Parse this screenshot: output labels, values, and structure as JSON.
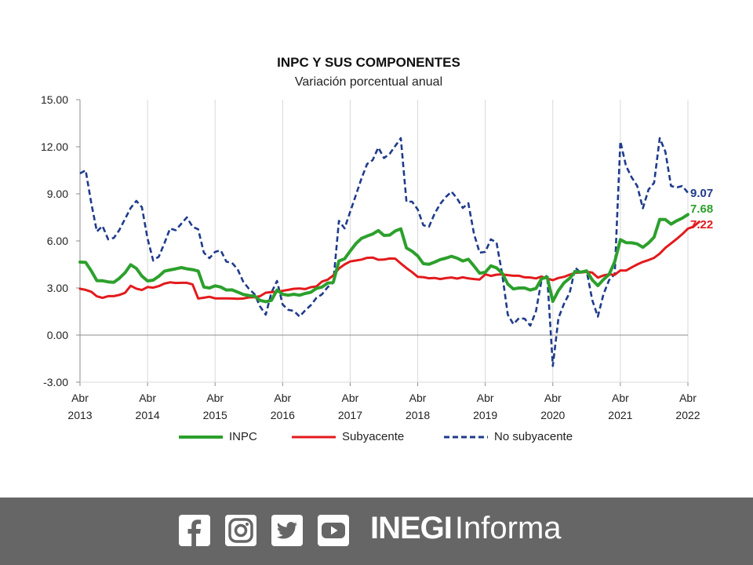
{
  "chart_data": {
    "type": "line",
    "title": "INPC Y SUS COMPONENTES",
    "subtitle": "Variación porcentual anual",
    "ylim": [
      -3,
      15
    ],
    "y_ticks": [
      "15.00",
      "12.00",
      "9.00",
      "6.00",
      "3.00",
      "0.00",
      "-3.00"
    ],
    "x_ticks": [
      {
        "month": "Abr",
        "year": "2013"
      },
      {
        "month": "Abr",
        "year": "2014"
      },
      {
        "month": "Abr",
        "year": "2015"
      },
      {
        "month": "Abr",
        "year": "2016"
      },
      {
        "month": "Abr",
        "year": "2017"
      },
      {
        "month": "Abr",
        "year": "2018"
      },
      {
        "month": "Abr",
        "year": "2019"
      },
      {
        "month": "Abr",
        "year": "2020"
      },
      {
        "month": "Abr",
        "year": "2021"
      },
      {
        "month": "Abr",
        "year": "2022"
      }
    ],
    "x_start": "2013-04",
    "x_end": "2022-04",
    "grid": "vertical",
    "legend_position": "bottom",
    "series": [
      {
        "name": "INPC",
        "color": "#2ca02c",
        "style": "solid",
        "last_label": "7.68",
        "values": [
          4.65,
          4.63,
          4.09,
          3.47,
          3.46,
          3.39,
          3.36,
          3.62,
          3.97,
          4.48,
          4.25,
          3.76,
          3.45,
          3.5,
          3.75,
          4.07,
          4.15,
          4.22,
          4.3,
          4.22,
          4.17,
          4.08,
          3.06,
          3.0,
          3.14,
          3.06,
          2.87,
          2.88,
          2.74,
          2.59,
          2.52,
          2.48,
          2.21,
          2.13,
          2.21,
          2.87,
          2.6,
          2.54,
          2.6,
          2.54,
          2.65,
          2.73,
          2.97,
          3.06,
          3.31,
          3.36,
          4.72,
          4.86,
          5.35,
          5.82,
          6.16,
          6.31,
          6.44,
          6.66,
          6.35,
          6.37,
          6.63,
          6.77,
          5.55,
          5.34,
          5.04,
          4.55,
          4.51,
          4.65,
          4.81,
          4.9,
          5.02,
          4.9,
          4.72,
          4.83,
          4.4,
          3.94,
          4.0,
          4.41,
          4.28,
          3.95,
          3.25,
          2.94,
          3.0,
          3.0,
          2.87,
          2.97,
          3.59,
          3.7,
          2.15,
          2.84,
          3.33,
          3.62,
          4.05,
          4.01,
          4.09,
          3.52,
          3.15,
          3.54,
          3.86,
          4.67,
          6.08,
          5.89,
          5.88,
          5.81,
          5.59,
          5.87,
          6.24,
          7.37,
          7.36,
          7.07,
          7.28,
          7.45,
          7.68
        ]
      },
      {
        "name": "Subyacente",
        "color": "#e31a1c",
        "style": "solid",
        "last_label": "7.22",
        "values": [
          2.95,
          2.88,
          2.76,
          2.47,
          2.37,
          2.48,
          2.48,
          2.56,
          2.69,
          3.14,
          2.96,
          2.87,
          3.06,
          3.02,
          3.12,
          3.28,
          3.36,
          3.32,
          3.33,
          3.33,
          3.23,
          2.33,
          2.38,
          2.44,
          2.34,
          2.34,
          2.34,
          2.33,
          2.31,
          2.33,
          2.4,
          2.41,
          2.48,
          2.7,
          2.74,
          2.76,
          2.82,
          2.88,
          2.95,
          2.97,
          2.93,
          3.05,
          3.1,
          3.41,
          3.53,
          3.8,
          4.24,
          4.5,
          4.69,
          4.75,
          4.81,
          4.92,
          4.94,
          4.8,
          4.81,
          4.88,
          4.87,
          4.56,
          4.27,
          4.01,
          3.71,
          3.69,
          3.62,
          3.64,
          3.57,
          3.63,
          3.67,
          3.6,
          3.68,
          3.61,
          3.57,
          3.54,
          3.87,
          3.77,
          3.85,
          3.87,
          3.82,
          3.78,
          3.78,
          3.68,
          3.67,
          3.61,
          3.73,
          3.6,
          3.5,
          3.64,
          3.71,
          3.85,
          3.97,
          3.99,
          4.03,
          3.98,
          3.66,
          3.8,
          3.87,
          3.84,
          4.12,
          4.11,
          4.31,
          4.5,
          4.66,
          4.78,
          4.92,
          5.19,
          5.56,
          5.84,
          6.12,
          6.43,
          6.78,
          6.91,
          7.22
        ]
      },
      {
        "name": "No subyacente",
        "color": "#1f3b8c",
        "style": "dashed",
        "last_label": "9.07",
        "values": [
          10.3,
          10.5,
          8.4,
          6.6,
          6.95,
          6.1,
          6.19,
          6.7,
          7.4,
          8.1,
          8.55,
          8.15,
          6.15,
          4.75,
          5.0,
          5.85,
          6.79,
          6.68,
          7.1,
          7.5,
          6.9,
          6.74,
          5.25,
          4.9,
          5.3,
          5.4,
          4.68,
          4.6,
          4.2,
          3.4,
          2.95,
          2.61,
          1.82,
          1.3,
          2.7,
          3.45,
          1.95,
          1.61,
          1.54,
          1.18,
          1.57,
          1.9,
          2.37,
          2.6,
          3.05,
          3.35,
          7.28,
          6.8,
          7.85,
          8.9,
          9.97,
          10.9,
          11.15,
          11.95,
          11.28,
          11.54,
          12.05,
          12.55,
          8.5,
          8.5,
          8.0,
          7.0,
          6.9,
          7.74,
          8.36,
          8.8,
          9.14,
          8.7,
          8.1,
          8.4,
          6.45,
          5.25,
          5.3,
          6.1,
          5.9,
          3.9,
          1.3,
          0.7,
          1.08,
          1.04,
          0.6,
          1.52,
          3.5,
          3.8,
          -1.97,
          1.09,
          2.0,
          2.7,
          4.29,
          3.96,
          4.12,
          2.24,
          1.18,
          2.61,
          3.5,
          3.88,
          12.34,
          10.78,
          10.06,
          9.5,
          8.08,
          9.27,
          9.7,
          12.55,
          11.68,
          9.5,
          9.4,
          9.5,
          9.07
        ]
      }
    ]
  },
  "legend": {
    "items": [
      {
        "label": "INPC"
      },
      {
        "label": "Subyacente"
      },
      {
        "label": "No subyacente"
      }
    ]
  },
  "footer": {
    "background": "#666666",
    "social_icons": [
      "facebook-icon",
      "instagram-icon",
      "twitter-icon",
      "youtube-icon"
    ],
    "brand_strong": "INEGI",
    "brand_light": "Informa"
  }
}
